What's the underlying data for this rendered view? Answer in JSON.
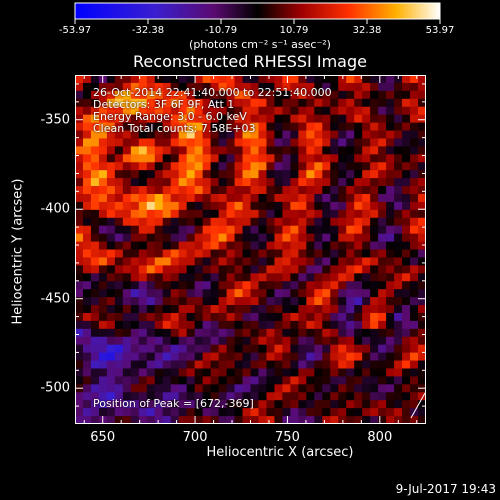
{
  "chart_data": {
    "type": "heatmap",
    "title": "Reconstructed RHESSI Image",
    "xlabel": "Heliocentric X (arcsec)",
    "ylabel": "Heliocentric Y (arcsec)",
    "xlim": [
      635,
      825
    ],
    "ylim": [
      -520,
      -325
    ],
    "x_ticks": [
      650,
      700,
      750,
      800
    ],
    "y_ticks": [
      -350,
      -400,
      -450,
      -500
    ],
    "colorbar": {
      "ticks": [
        "-53.97",
        "-32.38",
        "-10.79",
        "10.79",
        "32.38",
        "53.97"
      ],
      "units": "(photons cm⁻² s⁻¹ asec⁻²)",
      "range": [
        -53.97,
        53.97
      ]
    },
    "info_lines": [
      "26-Oct-2014 22:41:40.000 to 22:51:40.000",
      "Detectors: 3F 6F 9F, Att 1",
      "Energy Range: 3.0 - 6.0 keV",
      "Clean    Total counts: 7.58E+03"
    ],
    "peak_label": "Position of Peak = [672,-369]",
    "peak": [
      672,
      -369
    ]
  },
  "footer": {
    "date": "9-Jul-2017 19:43"
  },
  "colors": {
    "background": "#000000",
    "text": "#ffffff"
  }
}
